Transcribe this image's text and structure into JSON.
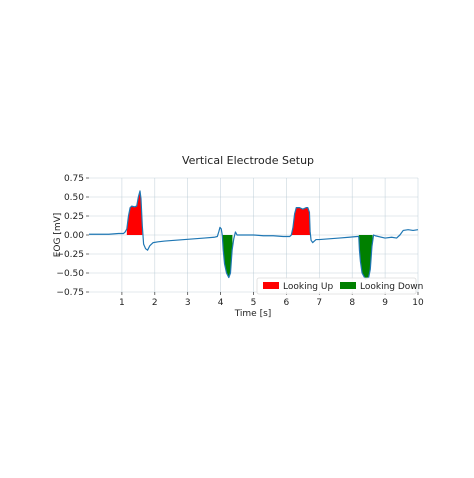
{
  "chart_data": {
    "type": "line",
    "title": "Vertical Electrode Setup",
    "xlabel": "Time [s]",
    "ylabel": "EOG [mV]",
    "xlim": [
      0,
      10
    ],
    "ylim": [
      -0.75,
      0.75
    ],
    "x_ticks": [
      1,
      2,
      3,
      4,
      5,
      6,
      7,
      8,
      9,
      10
    ],
    "x_tick_labels": [
      "1",
      "2",
      "3",
      "4",
      "5",
      "6",
      "7",
      "8",
      "9",
      "10"
    ],
    "y_ticks": [
      0.75,
      0.5,
      0.25,
      0.0,
      -0.25,
      -0.5,
      -0.75
    ],
    "y_tick_labels": [
      "0.75",
      "0.50",
      "0.25",
      "0.00",
      "−0.25",
      "−0.50",
      "−0.75"
    ],
    "grid": true,
    "legend_position": "bottom-right",
    "series": [
      {
        "name": "",
        "color": "#1f77b4",
        "points": [
          [
            0.0,
            0.01
          ],
          [
            0.3,
            0.01
          ],
          [
            0.6,
            0.01
          ],
          [
            0.9,
            0.02
          ],
          [
            1.05,
            0.02
          ],
          [
            1.1,
            0.04
          ],
          [
            1.15,
            0.08
          ],
          [
            1.2,
            0.25
          ],
          [
            1.25,
            0.36
          ],
          [
            1.3,
            0.38
          ],
          [
            1.38,
            0.37
          ],
          [
            1.45,
            0.38
          ],
          [
            1.5,
            0.5
          ],
          [
            1.55,
            0.58
          ],
          [
            1.58,
            0.48
          ],
          [
            1.62,
            0.12
          ],
          [
            1.66,
            -0.12
          ],
          [
            1.72,
            -0.18
          ],
          [
            1.78,
            -0.2
          ],
          [
            1.85,
            -0.14
          ],
          [
            1.95,
            -0.1
          ],
          [
            2.1,
            -0.09
          ],
          [
            2.3,
            -0.08
          ],
          [
            2.6,
            -0.07
          ],
          [
            2.9,
            -0.06
          ],
          [
            3.2,
            -0.05
          ],
          [
            3.5,
            -0.04
          ],
          [
            3.8,
            -0.03
          ],
          [
            3.9,
            -0.02
          ],
          [
            3.95,
            0.05
          ],
          [
            3.98,
            0.1
          ],
          [
            4.02,
            0.08
          ],
          [
            4.05,
            0.0
          ],
          [
            4.08,
            -0.2
          ],
          [
            4.12,
            -0.38
          ],
          [
            4.18,
            -0.5
          ],
          [
            4.25,
            -0.56
          ],
          [
            4.3,
            -0.5
          ],
          [
            4.35,
            -0.2
          ],
          [
            4.4,
            -0.05
          ],
          [
            4.45,
            0.04
          ],
          [
            4.5,
            0.0
          ],
          [
            4.7,
            0.0
          ],
          [
            5.0,
            0.0
          ],
          [
            5.3,
            -0.01
          ],
          [
            5.6,
            -0.01
          ],
          [
            5.9,
            -0.02
          ],
          [
            6.1,
            -0.02
          ],
          [
            6.15,
            0.0
          ],
          [
            6.2,
            0.1
          ],
          [
            6.25,
            0.28
          ],
          [
            6.3,
            0.36
          ],
          [
            6.4,
            0.36
          ],
          [
            6.5,
            0.34
          ],
          [
            6.6,
            0.36
          ],
          [
            6.65,
            0.36
          ],
          [
            6.7,
            0.3
          ],
          [
            6.72,
            0.05
          ],
          [
            6.75,
            -0.07
          ],
          [
            6.8,
            -0.1
          ],
          [
            6.9,
            -0.06
          ],
          [
            7.0,
            -0.06
          ],
          [
            7.3,
            -0.05
          ],
          [
            7.6,
            -0.04
          ],
          [
            7.9,
            -0.03
          ],
          [
            8.15,
            -0.02
          ],
          [
            8.2,
            -0.02
          ],
          [
            8.22,
            -0.2
          ],
          [
            8.25,
            -0.35
          ],
          [
            8.3,
            -0.5
          ],
          [
            8.4,
            -0.58
          ],
          [
            8.5,
            -0.56
          ],
          [
            8.55,
            -0.45
          ],
          [
            8.6,
            -0.15
          ],
          [
            8.65,
            0.0
          ],
          [
            8.7,
            -0.01
          ],
          [
            9.0,
            -0.04
          ],
          [
            9.2,
            -0.03
          ],
          [
            9.35,
            -0.04
          ],
          [
            9.45,
            0.0
          ],
          [
            9.55,
            0.06
          ],
          [
            9.7,
            0.07
          ],
          [
            9.85,
            0.06
          ],
          [
            10.0,
            0.07
          ]
        ]
      }
    ],
    "fills": [
      {
        "name": "Looking Up",
        "color": "#ff0000",
        "x_range": [
          1.15,
          1.62
        ],
        "direction": "up"
      },
      {
        "name": "Looking Up",
        "color": "#ff0000",
        "x_range": [
          6.15,
          6.72
        ],
        "direction": "up"
      },
      {
        "name": "Looking Down",
        "color": "#008000",
        "x_range": [
          4.05,
          4.36
        ],
        "direction": "down"
      },
      {
        "name": "Looking Down",
        "color": "#008000",
        "x_range": [
          8.2,
          8.62
        ],
        "direction": "down"
      }
    ],
    "legend": [
      {
        "label": "Looking Up",
        "color": "#ff0000"
      },
      {
        "label": "Looking Down",
        "color": "#008000"
      }
    ]
  }
}
